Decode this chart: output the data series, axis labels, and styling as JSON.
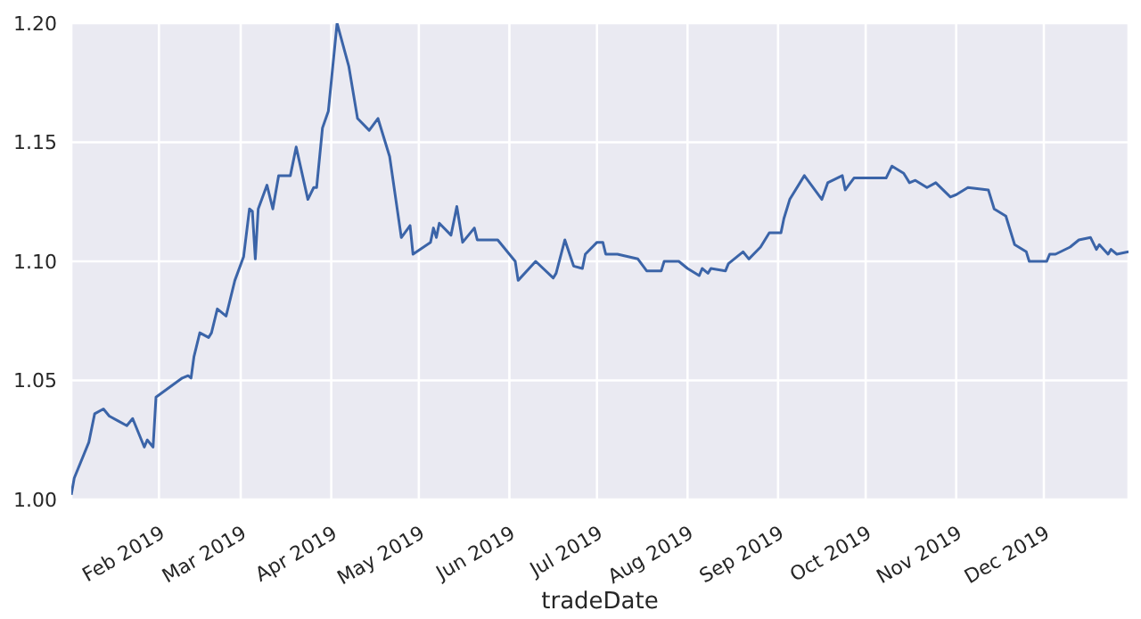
{
  "chart_data": {
    "type": "line",
    "xlabel": "tradeDate",
    "grid": true,
    "marker": "none",
    "line_style": "solid",
    "xlim": [
      "2019-01-02",
      "2019-12-30"
    ],
    "ylim": [
      1.0,
      1.2
    ],
    "yticks": [
      {
        "value": 1.0,
        "label": "1.00"
      },
      {
        "value": 1.05,
        "label": "1.05"
      },
      {
        "value": 1.1,
        "label": "1.10"
      },
      {
        "value": 1.15,
        "label": "1.15"
      },
      {
        "value": 1.2,
        "label": "1.20"
      }
    ],
    "xticks": [
      {
        "value": "2019-02-01",
        "label": "Feb 2019"
      },
      {
        "value": "2019-03-01",
        "label": "Mar 2019"
      },
      {
        "value": "2019-04-01",
        "label": "Apr 2019"
      },
      {
        "value": "2019-05-01",
        "label": "May 2019"
      },
      {
        "value": "2019-06-01",
        "label": "Jun 2019"
      },
      {
        "value": "2019-07-01",
        "label": "Jul 2019"
      },
      {
        "value": "2019-08-01",
        "label": "Aug 2019"
      },
      {
        "value": "2019-09-01",
        "label": "Sep 2019"
      },
      {
        "value": "2019-10-01",
        "label": "Oct 2019"
      },
      {
        "value": "2019-11-01",
        "label": "Nov 2019"
      },
      {
        "value": "2019-12-01",
        "label": "Dec 2019"
      }
    ],
    "x": [
      "2019-01-02",
      "2019-01-03",
      "2019-01-08",
      "2019-01-10",
      "2019-01-13",
      "2019-01-15",
      "2019-01-18",
      "2019-01-21",
      "2019-01-23",
      "2019-01-27",
      "2019-01-28",
      "2019-01-30",
      "2019-01-31",
      "2019-02-09",
      "2019-02-11",
      "2019-02-12",
      "2019-02-13",
      "2019-02-15",
      "2019-02-18",
      "2019-02-19",
      "2019-02-21",
      "2019-02-24",
      "2019-02-27",
      "2019-03-02",
      "2019-03-04",
      "2019-03-05",
      "2019-03-06",
      "2019-03-07",
      "2019-03-10",
      "2019-03-12",
      "2019-03-14",
      "2019-03-18",
      "2019-03-20",
      "2019-03-24",
      "2019-03-26",
      "2019-03-27",
      "2019-03-29",
      "2019-03-31",
      "2019-04-03",
      "2019-04-07",
      "2019-04-10",
      "2019-04-14",
      "2019-04-17",
      "2019-04-21",
      "2019-04-25",
      "2019-04-28",
      "2019-04-29",
      "2019-05-05",
      "2019-05-06",
      "2019-05-07",
      "2019-05-08",
      "2019-05-12",
      "2019-05-14",
      "2019-05-16",
      "2019-05-20",
      "2019-05-21",
      "2019-05-28",
      "2019-06-01",
      "2019-06-03",
      "2019-06-04",
      "2019-06-10",
      "2019-06-16",
      "2019-06-17",
      "2019-06-20",
      "2019-06-23",
      "2019-06-26",
      "2019-06-27",
      "2019-07-01",
      "2019-07-03",
      "2019-07-04",
      "2019-07-08",
      "2019-07-15",
      "2019-07-18",
      "2019-07-23",
      "2019-07-24",
      "2019-07-29",
      "2019-08-01",
      "2019-08-05",
      "2019-08-06",
      "2019-08-08",
      "2019-08-09",
      "2019-08-14",
      "2019-08-15",
      "2019-08-20",
      "2019-08-22",
      "2019-08-26",
      "2019-08-29",
      "2019-09-02",
      "2019-09-03",
      "2019-09-05",
      "2019-09-10",
      "2019-09-16",
      "2019-09-18",
      "2019-09-23",
      "2019-09-24",
      "2019-09-27",
      "2019-10-08",
      "2019-10-10",
      "2019-10-14",
      "2019-10-16",
      "2019-10-18",
      "2019-10-22",
      "2019-10-25",
      "2019-10-30",
      "2019-11-01",
      "2019-11-05",
      "2019-11-12",
      "2019-11-14",
      "2019-11-18",
      "2019-11-21",
      "2019-11-25",
      "2019-11-26",
      "2019-12-02",
      "2019-12-03",
      "2019-12-05",
      "2019-12-10",
      "2019-12-13",
      "2019-12-17",
      "2019-12-19",
      "2019-12-20",
      "2019-12-23",
      "2019-12-24",
      "2019-12-26",
      "2019-12-30"
    ],
    "series": [
      {
        "color": "#3b64a8",
        "values": [
          1.002,
          1.009,
          1.024,
          1.036,
          1.038,
          1.035,
          1.033,
          1.031,
          1.034,
          1.022,
          1.025,
          1.022,
          1.043,
          1.051,
          1.052,
          1.051,
          1.06,
          1.07,
          1.068,
          1.07,
          1.08,
          1.077,
          1.092,
          1.102,
          1.122,
          1.121,
          1.101,
          1.122,
          1.132,
          1.122,
          1.136,
          1.136,
          1.148,
          1.126,
          1.131,
          1.131,
          1.156,
          1.163,
          1.2,
          1.182,
          1.16,
          1.155,
          1.16,
          1.144,
          1.11,
          1.115,
          1.103,
          1.108,
          1.114,
          1.11,
          1.116,
          1.111,
          1.123,
          1.108,
          1.114,
          1.109,
          1.109,
          1.103,
          1.1,
          1.092,
          1.1,
          1.093,
          1.095,
          1.109,
          1.098,
          1.097,
          1.103,
          1.108,
          1.108,
          1.103,
          1.103,
          1.101,
          1.096,
          1.096,
          1.1,
          1.1,
          1.097,
          1.094,
          1.097,
          1.095,
          1.097,
          1.096,
          1.099,
          1.104,
          1.101,
          1.106,
          1.112,
          1.112,
          1.118,
          1.126,
          1.136,
          1.126,
          1.133,
          1.136,
          1.13,
          1.135,
          1.135,
          1.14,
          1.137,
          1.133,
          1.134,
          1.131,
          1.133,
          1.127,
          1.128,
          1.131,
          1.13,
          1.122,
          1.119,
          1.107,
          1.104,
          1.1,
          1.1,
          1.103,
          1.103,
          1.106,
          1.109,
          1.11,
          1.105,
          1.107,
          1.103,
          1.105,
          1.103,
          1.104
        ]
      }
    ]
  }
}
